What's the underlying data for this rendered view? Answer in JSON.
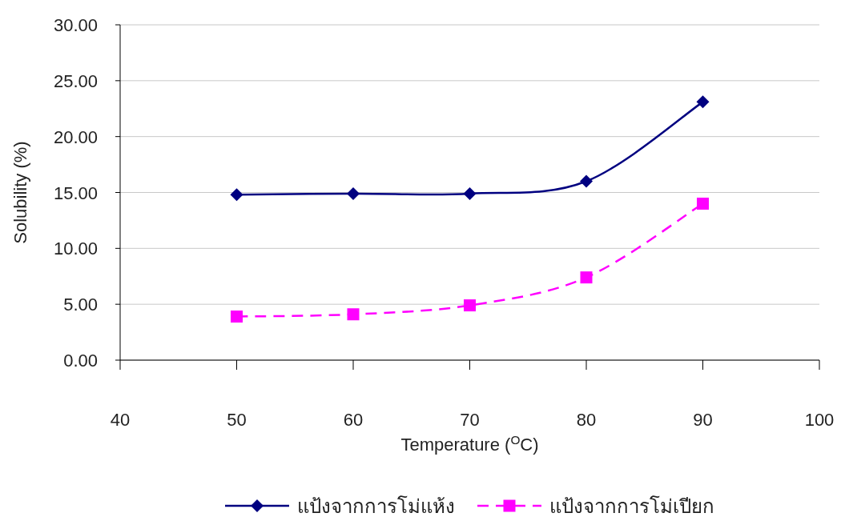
{
  "chart_data": {
    "type": "line",
    "xlabel": "Temperature ($^{O}$C)",
    "ylabel": "Solubility (%)",
    "x": [
      50,
      60,
      70,
      80,
      90
    ],
    "series": [
      {
        "name": "แป้งจากการโม่แห้ง",
        "color": "#000080",
        "values": [
          14.8,
          14.9,
          14.9,
          16.0,
          23.1
        ],
        "marker": "diamond",
        "line_style": "solid"
      },
      {
        "name": "แป้งจากการโม่เปียก",
        "color": "#ff00ff",
        "values": [
          3.9,
          4.1,
          4.9,
          7.4,
          14.0
        ],
        "marker": "square",
        "line_style": "dashed"
      }
    ],
    "xlim": [
      40,
      100
    ],
    "xticks": [
      40,
      50,
      60,
      70,
      80,
      90,
      100
    ],
    "ylim": [
      0,
      30
    ],
    "yticks": [
      {
        "value": 0,
        "label": "0.00"
      },
      {
        "value": 5,
        "label": "5.00"
      },
      {
        "value": 10,
        "label": "10.00"
      },
      {
        "value": 15,
        "label": "15.00"
      },
      {
        "value": 20,
        "label": "20.00"
      },
      {
        "value": 25,
        "label": "25.00"
      },
      {
        "value": 30,
        "label": "30.00"
      }
    ],
    "grid": "y",
    "legend": "bottom"
  }
}
